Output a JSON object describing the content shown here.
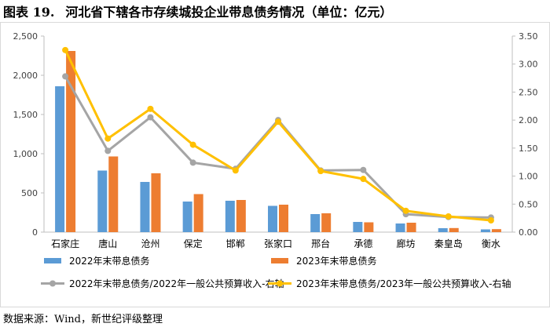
{
  "header": {
    "label": "图表 19.",
    "title": "河北省下辖各市存续城投企业带息债务情况（单位：亿元）"
  },
  "footer": {
    "source": "数据来源：Wind，新世纪评级整理"
  },
  "chart_data": {
    "type": "bar",
    "categories": [
      "石家庄",
      "唐山",
      "沧州",
      "保定",
      "邯郸",
      "张家口",
      "邢台",
      "承德",
      "廊坊",
      "秦皇岛",
      "衡水"
    ],
    "y_left": {
      "min": 0,
      "max": 2500,
      "step": 500,
      "ticks": [
        "0",
        "500",
        "1,000",
        "1,500",
        "2,000",
        "2,500"
      ]
    },
    "y_right": {
      "min": 0,
      "max": 3.5,
      "step": 0.5,
      "ticks": [
        "0.00",
        "0.50",
        "1.00",
        "1.50",
        "2.00",
        "2.50",
        "3.00",
        "3.50"
      ]
    },
    "grid": false,
    "legend_position": "bottom",
    "series": [
      {
        "name": "2022年末带息债务",
        "type": "bar",
        "axis": "left",
        "color": "#5b9bd5",
        "values": [
          1860,
          785,
          640,
          390,
          400,
          335,
          230,
          130,
          110,
          50,
          35
        ]
      },
      {
        "name": "2023年末带息债务",
        "type": "bar",
        "axis": "left",
        "color": "#ed7d31",
        "values": [
          2310,
          965,
          750,
          485,
          410,
          350,
          240,
          125,
          120,
          52,
          38
        ]
      },
      {
        "name": "2022年末带息债务/2022年一般公共预算收入-右轴",
        "type": "line",
        "axis": "right",
        "color": "#a5a5a5",
        "values": [
          2.78,
          1.45,
          2.05,
          1.24,
          1.13,
          2.0,
          1.1,
          1.11,
          0.32,
          0.27,
          0.26
        ]
      },
      {
        "name": "2023年末带息债务/2023年一般公共预算收入-右轴",
        "type": "line",
        "axis": "right",
        "color": "#ffc000",
        "values": [
          3.25,
          1.67,
          2.2,
          1.56,
          1.1,
          1.97,
          1.09,
          0.95,
          0.38,
          0.28,
          0.21
        ]
      }
    ]
  }
}
